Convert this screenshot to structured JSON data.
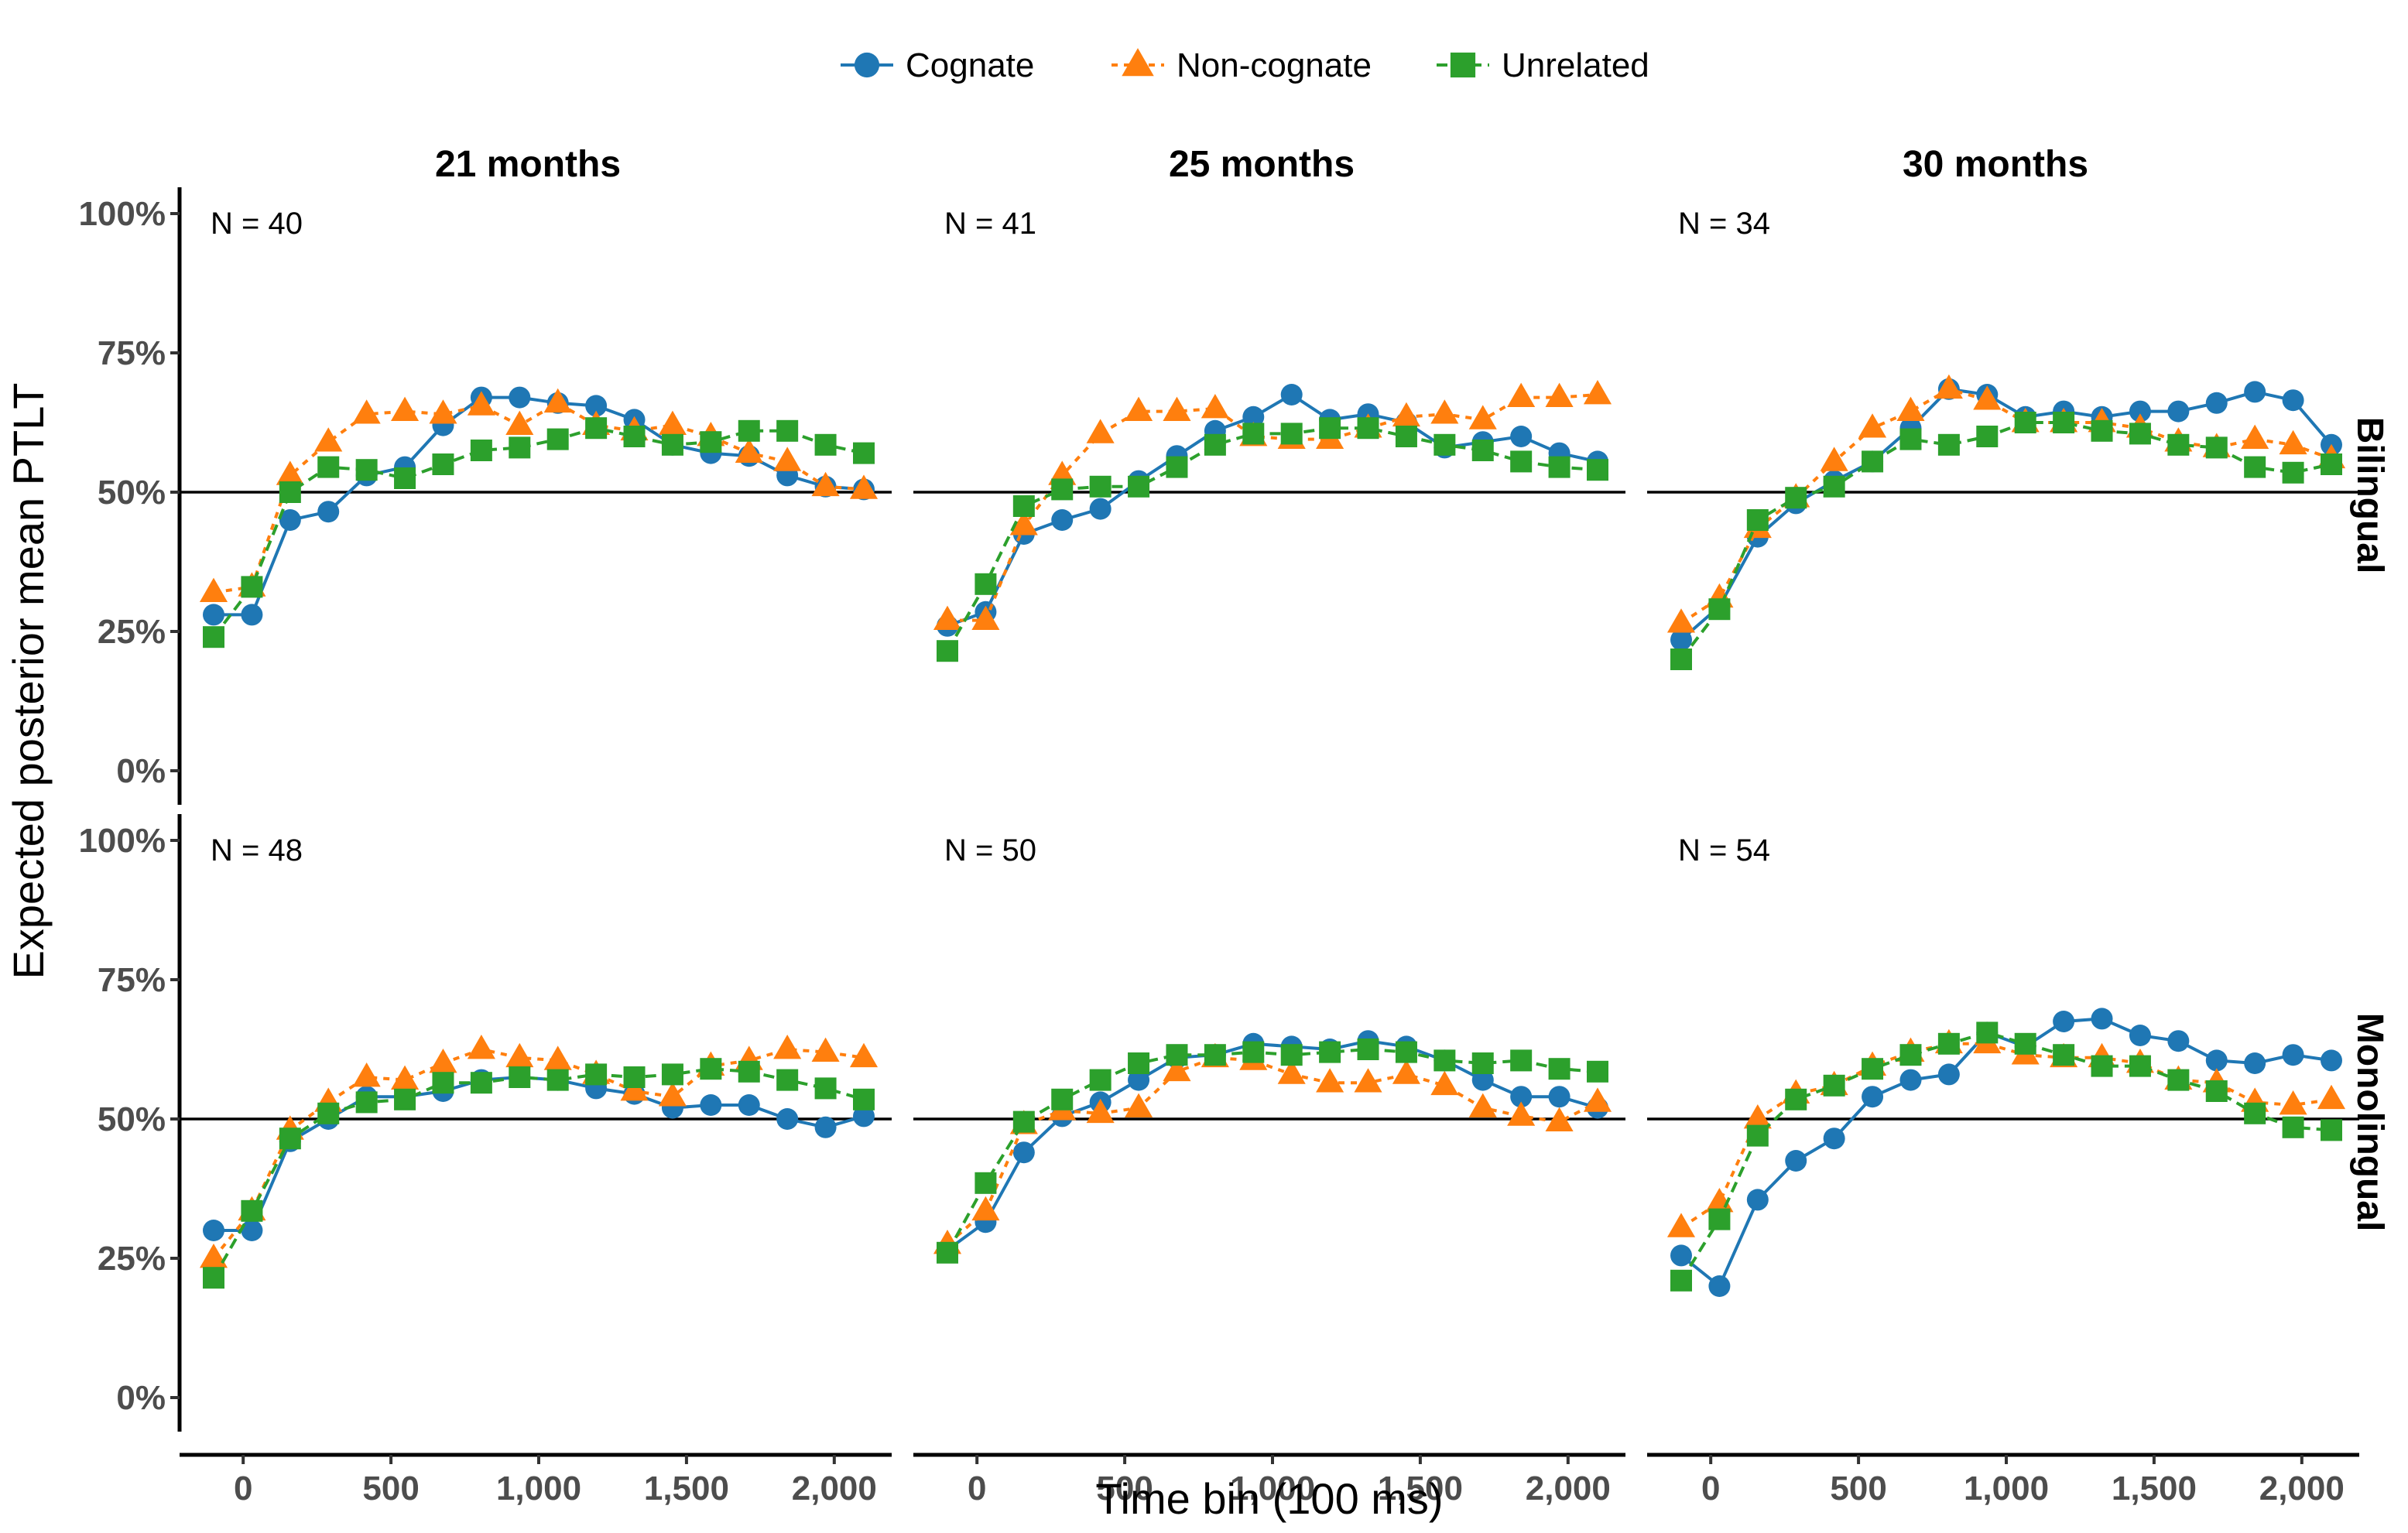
{
  "chart_data": {
    "type": "line",
    "xlabel": "Time bin (100 ms)",
    "ylabel": "Expected posterior mean PTLT",
    "x_ticks": [
      0,
      500,
      1000,
      1500,
      2000
    ],
    "x_tick_labels": [
      "0",
      "500",
      "1,000",
      "1,500",
      "2,000"
    ],
    "y_ticks": [
      0,
      25,
      50,
      75,
      100
    ],
    "y_tick_labels": [
      "0%",
      "25%",
      "50%",
      "75%",
      "100%"
    ],
    "xlim": [
      -100,
      2100
    ],
    "ylim": [
      0,
      100
    ],
    "reference_line": 50,
    "columns": [
      "21 months",
      "25 months",
      "30 months"
    ],
    "rows": [
      "Bilingual",
      "Monolingual"
    ],
    "legend_position": "top",
    "x": [
      -100,
      0,
      100,
      200,
      300,
      400,
      500,
      600,
      700,
      800,
      900,
      1000,
      1100,
      1200,
      1300,
      1400,
      1500,
      1600,
      1700,
      1800,
      1900
    ],
    "series": [
      {
        "name": "Cognate",
        "color": "#1f77b4",
        "marker": "circle",
        "dash": "solid"
      },
      {
        "name": "Non-cognate",
        "color": "#ff7f0e",
        "marker": "triangle",
        "dash": "dotted"
      },
      {
        "name": "Unrelated",
        "color": "#2ca02c",
        "marker": "square",
        "dash": "dashed"
      }
    ],
    "panels": [
      {
        "row": "Bilingual",
        "col": "21 months",
        "n_label": "N = 40",
        "values": [
          [
            28,
            28,
            45,
            46.5,
            53,
            54.5,
            62,
            67,
            67,
            66,
            65.5,
            63,
            58.5,
            57,
            56.5,
            53,
            51,
            50.5
          ],
          [
            32,
            33,
            53,
            59,
            64,
            64.5,
            64,
            65.5,
            62,
            66,
            62,
            61,
            62,
            60,
            57,
            55.5,
            51,
            50.5
          ],
          [
            24,
            33,
            50,
            54.5,
            54,
            52.5,
            55,
            57.5,
            58,
            59.5,
            61.5,
            60,
            58.5,
            59,
            61,
            61,
            58.5,
            57
          ]
        ]
      },
      {
        "row": "Bilingual",
        "col": "25 months",
        "n_label": "N = 41",
        "values": [
          [
            26,
            28.5,
            42.5,
            45,
            47,
            52,
            56.5,
            61,
            63.5,
            67.5,
            63,
            64,
            62.5,
            58,
            59,
            60,
            57,
            55.5
          ],
          [
            27,
            27,
            44,
            53,
            60.5,
            64.5,
            64.5,
            65,
            60,
            59.5,
            59.5,
            61.5,
            63.5,
            64,
            63,
            67,
            67,
            67.5
          ],
          [
            21.5,
            33.5,
            47.5,
            50.5,
            51,
            51,
            54.5,
            58.5,
            60.5,
            60.5,
            61.5,
            61.5,
            60,
            58.5,
            57.5,
            55.5,
            54.5,
            54
          ]
        ]
      },
      {
        "row": "Bilingual",
        "col": "30 months",
        "n_label": "N = 34",
        "values": [
          [
            23.5,
            29.5,
            42,
            48,
            52,
            55.5,
            61.5,
            68.5,
            67.5,
            63.5,
            64.5,
            63.5,
            64.5,
            64.5,
            66,
            68,
            66.5,
            58.5
          ],
          [
            26.5,
            31,
            43.5,
            49,
            55.5,
            61.5,
            64.5,
            68.5,
            66.5,
            62.5,
            62.5,
            62.5,
            61.5,
            59,
            58,
            59.5,
            58.5,
            56
          ],
          [
            20,
            29,
            45,
            49,
            51,
            55.5,
            59.5,
            58.5,
            60,
            62.5,
            62.5,
            61,
            60.5,
            58.5,
            58,
            54.5,
            53.5,
            55
          ]
        ]
      },
      {
        "row": "Monolingual",
        "col": "21 months",
        "n_label": "N = 48",
        "values": [
          [
            30,
            30,
            46,
            50,
            54,
            54,
            55,
            57,
            57.5,
            57,
            55.5,
            54.5,
            52,
            52.5,
            52.5,
            50,
            48.5,
            50.5
          ],
          [
            25,
            33.5,
            48,
            53,
            57.5,
            57,
            60,
            62.5,
            61,
            60.5,
            58,
            55,
            54,
            59.5,
            60.5,
            62.5,
            62,
            61
          ],
          [
            21.5,
            33.5,
            46.5,
            51,
            53,
            53.5,
            56.5,
            56.5,
            57.5,
            57,
            58,
            57.5,
            58,
            59,
            58.5,
            57,
            55.5,
            53.5
          ]
        ]
      },
      {
        "row": "Monolingual",
        "col": "25 months",
        "n_label": "N = 50",
        "values": [
          [
            26.5,
            31.5,
            44,
            50.5,
            53,
            57,
            61,
            61.5,
            63.5,
            63,
            62.5,
            64,
            63,
            60.5,
            57,
            54,
            54,
            52
          ],
          [
            27.5,
            33.5,
            49,
            51.5,
            51,
            52,
            58.5,
            61,
            60.5,
            58,
            56.5,
            56.5,
            58,
            56,
            52,
            50.5,
            49.5,
            53
          ],
          [
            26,
            38.5,
            49.5,
            53.5,
            57,
            60,
            61.5,
            61.5,
            62,
            61.5,
            62,
            62.5,
            62,
            60.5,
            60,
            60.5,
            59,
            58.5
          ]
        ]
      },
      {
        "row": "Monolingual",
        "col": "30 months",
        "n_label": "N = 54",
        "values": [
          [
            25.5,
            20,
            35.5,
            42.5,
            46.5,
            54,
            57,
            58,
            65.5,
            63,
            67.5,
            68,
            65,
            64,
            60.5,
            60,
            61.5,
            60.5
          ],
          [
            30.5,
            35,
            50,
            54.5,
            56,
            59.5,
            62,
            63.5,
            63.5,
            61.5,
            61,
            61,
            60,
            57,
            56.5,
            53,
            52.5,
            53.5
          ],
          [
            21,
            32,
            47,
            53.5,
            56,
            59,
            61.5,
            63.5,
            65.5,
            63.5,
            61.5,
            59.5,
            59.5,
            57,
            55,
            51,
            48.5,
            48
          ]
        ]
      }
    ],
    "panel_x": [
      -100,
      0,
      100,
      200,
      300,
      400,
      500,
      600,
      700,
      800,
      900,
      1000,
      1100,
      1200,
      1300,
      1400,
      1500,
      1600
    ]
  }
}
